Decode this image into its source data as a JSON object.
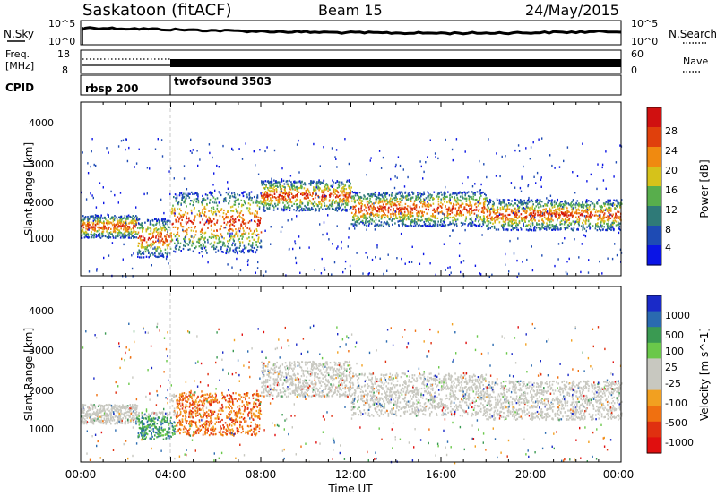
{
  "header": {
    "station": "Saskatoon (fitACF)",
    "beam": "Beam 15",
    "date": "24/May/2015"
  },
  "nsky_panel": {
    "left_label": "N.Sky",
    "right_label": "N.Search",
    "left_ticks": [
      "10^5",
      "10^0"
    ],
    "right_ticks": [
      "10^5",
      "10^0"
    ]
  },
  "freq_panel": {
    "left_label_line1": "Freq.",
    "left_label_line2": "[MHz]",
    "right_label": "Nave",
    "left_ticks": [
      "18",
      "8"
    ],
    "right_ticks": [
      "60",
      "0"
    ]
  },
  "cpid_panel": {
    "label": "CPID",
    "programs": [
      {
        "name": "rbsp 200",
        "start_hour": 0
      },
      {
        "name": "twofsound 3503",
        "start_hour": 4
      }
    ]
  },
  "colors": {
    "power_scale": [
      "#0a14e6",
      "#1e4bb4",
      "#2f7a78",
      "#58ae4c",
      "#d6c21a",
      "#f08a10",
      "#e0400c",
      "#d01010"
    ],
    "velocity_scale": [
      "#1a2ac8",
      "#2a6ab0",
      "#3a9a52",
      "#6ac84a",
      "#c8c8c0",
      "#c8c8c0",
      "#f2a020",
      "#f07010",
      "#e03010",
      "#e00f0f"
    ]
  },
  "chart_data": [
    {
      "type": "heatmap",
      "quantity": "power",
      "ylabel": "Slant Range [km]",
      "ylim": [
        0,
        4500
      ],
      "y_ticks": [
        "1000",
        "2000",
        "3000",
        "4000"
      ],
      "xlim_hours": [
        0,
        24
      ],
      "colorbar_label": "Power [dB]",
      "colorbar_ticks": [
        "4",
        "8",
        "12",
        "16",
        "20",
        "24",
        "28"
      ],
      "colorbar_range": [
        0,
        30
      ],
      "echo_bands": [
        {
          "hour_start": 0,
          "hour_end": 2.5,
          "range_km": [
            1000,
            1600
          ]
        },
        {
          "hour_start": 2.5,
          "hour_end": 4,
          "range_km": [
            500,
            1500
          ]
        },
        {
          "hour_start": 4,
          "hour_end": 8,
          "range_km": [
            600,
            2200
          ]
        },
        {
          "hour_start": 8,
          "hour_end": 12,
          "range_km": [
            1700,
            2500
          ]
        },
        {
          "hour_start": 12,
          "hour_end": 18,
          "range_km": [
            1300,
            2200
          ]
        },
        {
          "hour_start": 18,
          "hour_end": 24,
          "range_km": [
            1200,
            2000
          ]
        }
      ]
    },
    {
      "type": "heatmap",
      "quantity": "velocity",
      "ylabel": "Slant Range [km]",
      "ylim": [
        0,
        4500
      ],
      "y_ticks": [
        "1000",
        "2000",
        "3000",
        "4000"
      ],
      "xlabel": "Time UT",
      "x_ticks": [
        "00:00",
        "04:00",
        "08:00",
        "12:00",
        "16:00",
        "20:00",
        "00:00"
      ],
      "xlim_hours": [
        0,
        24
      ],
      "colorbar_label": "Velocity [m s^-1]",
      "colorbar_ticks": [
        "1000",
        "500",
        "100",
        "25",
        "-25",
        "-100",
        "-500",
        "-1000"
      ],
      "echo_bands": [
        {
          "hour_start": 0,
          "hour_end": 2.5,
          "range_km": [
            1000,
            1500
          ]
        },
        {
          "hour_start": 2.5,
          "hour_end": 4,
          "range_km": [
            600,
            1300
          ]
        },
        {
          "hour_start": 4,
          "hour_end": 8,
          "range_km": [
            700,
            1800
          ]
        },
        {
          "hour_start": 8,
          "hour_end": 12,
          "range_km": [
            1700,
            2600
          ]
        },
        {
          "hour_start": 12,
          "hour_end": 18,
          "range_km": [
            1200,
            2300
          ]
        },
        {
          "hour_start": 18,
          "hour_end": 24,
          "range_km": [
            1100,
            2100
          ]
        }
      ]
    }
  ]
}
